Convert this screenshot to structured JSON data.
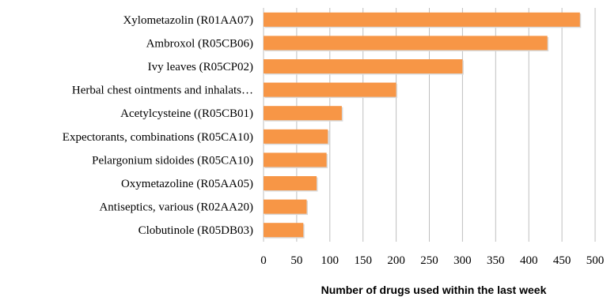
{
  "chart_data": {
    "type": "bar",
    "orientation": "horizontal",
    "categories": [
      "Xylometazolin (R01AA07)",
      "Ambroxol (R05CB06)",
      "Ivy leaves (R05CP02)",
      "Herbal chest ointments and inhalats…",
      "Acetylcysteine ((R05CB01)",
      "Expectorants, combinations (R05CA10)",
      "Pelargonium sidoides (R05CA10)",
      "Oxymetazoline (R05AA05)",
      "Antiseptics, various (R02AA20)",
      "Clobutinole (R05DB03)"
    ],
    "values": [
      477,
      428,
      300,
      200,
      118,
      97,
      95,
      80,
      65,
      60
    ],
    "xlabel": "Number of drugs used within the last week",
    "xlim": [
      0,
      500
    ],
    "xticks": [
      "0",
      "50",
      "100",
      "150",
      "200",
      "250",
      "300",
      "350",
      "400",
      "450",
      "500"
    ],
    "grid": "vertical",
    "bar_color": "#F79646"
  }
}
